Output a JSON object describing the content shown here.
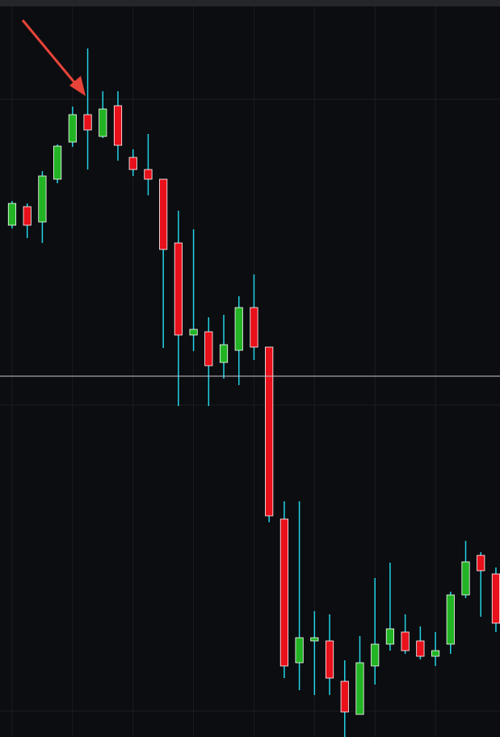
{
  "chart_data": {
    "type": "candlestick",
    "x": [
      0,
      1,
      2,
      3,
      4,
      5,
      6,
      7,
      8,
      9,
      10,
      11,
      12,
      13,
      14,
      15,
      16,
      17,
      18,
      19,
      20,
      21,
      22,
      23,
      24,
      25,
      26,
      27,
      28,
      29,
      30,
      31,
      32
    ],
    "open": [
      634,
      657,
      638,
      691,
      737,
      771,
      744,
      782,
      718,
      703,
      691,
      612,
      498,
      502,
      464,
      479,
      532,
      483,
      270,
      92,
      119,
      119,
      69,
      28,
      88,
      115,
      130,
      119,
      100,
      115,
      176,
      225,
      202
    ],
    "close": [
      661,
      634,
      695,
      732,
      771,
      752,
      778,
      733,
      703,
      691,
      604,
      498,
      505,
      460,
      486,
      532,
      483,
      274,
      88,
      123,
      123,
      73,
      31,
      92,
      115,
      134,
      107,
      100,
      107,
      176,
      217,
      206,
      141
    ],
    "high": [
      664,
      661,
      701,
      734,
      781,
      853,
      800,
      800,
      728,
      747,
      691,
      652,
      629,
      520,
      523,
      546,
      573,
      483,
      292,
      292,
      156,
      152,
      95,
      125,
      197,
      216,
      152,
      137,
      130,
      180,
      243,
      229,
      210
    ],
    "low": [
      630,
      618,
      612,
      686,
      731,
      703,
      742,
      714,
      695,
      671,
      482,
      410,
      478,
      410,
      444,
      436,
      467,
      266,
      73,
      58,
      52,
      52,
      0,
      28,
      65,
      107,
      103,
      96,
      88,
      103,
      172,
      149,
      130
    ],
    "up_color": "#22b424",
    "down_color": "#e8101a",
    "wick_color": "#22d3e6",
    "xlim": [
      -0.8,
      32.27
    ],
    "ylim": [
      0,
      913
    ],
    "xticks": [
      0,
      4,
      8,
      12,
      16,
      20,
      24,
      28
    ],
    "yticks": [
      32,
      411,
      790
    ],
    "grid": true,
    "hline": 447
  }
}
